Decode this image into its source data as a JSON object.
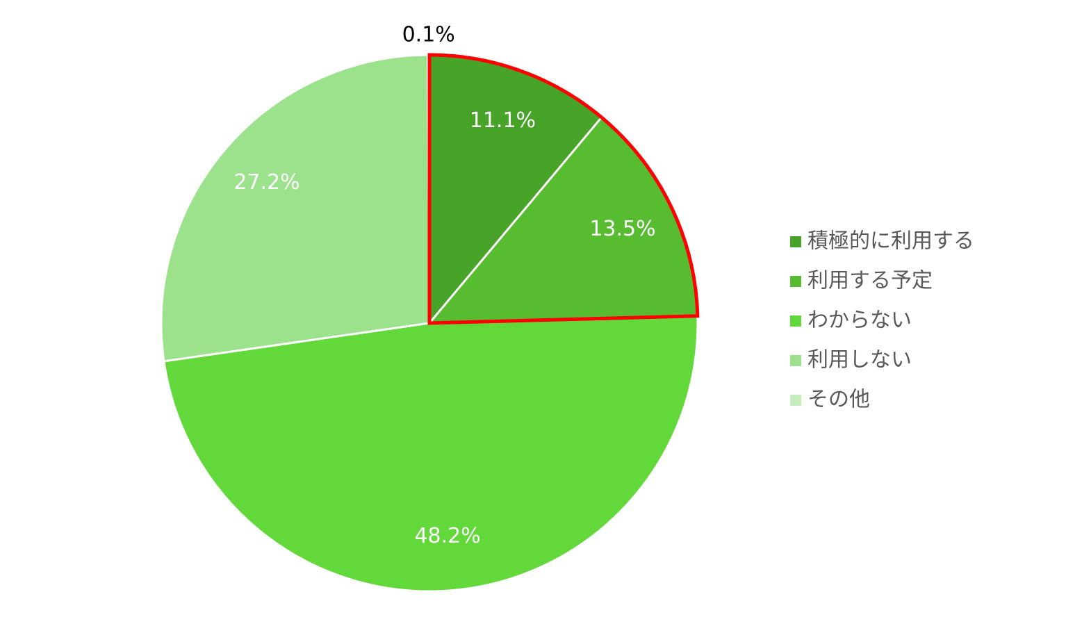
{
  "chart_data": {
    "type": "pie",
    "categories": [
      "積極的に利用する",
      "利用する予定",
      "わからない",
      "利用しない",
      "その他"
    ],
    "values": [
      11.1,
      13.5,
      48.2,
      27.2,
      0.1
    ],
    "value_labels": [
      "11.1%",
      "13.5%",
      "48.2%",
      "27.2%",
      "0.1%"
    ],
    "colors": [
      "#48a428",
      "#58bc30",
      "#62d83a",
      "#9ce28c",
      "#c4ecbc"
    ],
    "legend": "right"
  }
}
